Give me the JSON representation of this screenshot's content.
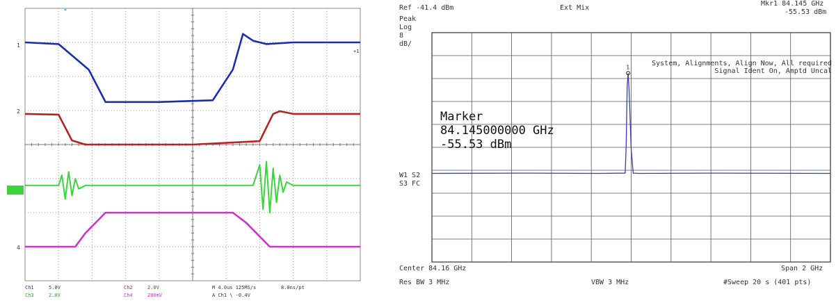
{
  "oscilloscope": {
    "channel_labels": [
      "1",
      "2",
      "4"
    ],
    "channel_colors": {
      "ch1": "#1a2ea8",
      "ch2": "#b52424",
      "ch3": "#3bd43b",
      "ch4": "#cc33cc"
    },
    "footer": {
      "ch1": "Ch1",
      "ch1_val": "5.0V",
      "ch3": "Ch3",
      "ch3_val": "2.0V",
      "ch2": "Ch2",
      "ch2_val": "2.0V",
      "ch4": "Ch4",
      "ch4_val": "200mV",
      "time": "M 4.0us 125MS/s",
      "trig": "8.0ns/pt",
      "aux": "A Ch1 \\ -0.4V"
    }
  },
  "spectrum": {
    "ref": "Ref -41.4 dBm",
    "ext_mix": "Ext Mix",
    "mkr_label": "Mkr1  84.145 GHz",
    "mkr_level": "-55.53 dBm",
    "peak": "Peak",
    "log": "Log",
    "scale_num": "8",
    "scale_unit": "dB/",
    "sys_line1": "System, Alignments, Align Now, All required",
    "sys_line2": "Signal Ident On, Amptd Uncal",
    "w1": "W1  S2",
    "s3": "S3  FC",
    "center": "Center 84.16 GHz",
    "span": "Span 2 GHz",
    "res_bw": "Res BW 3 MHz",
    "vbw": "VBW 3 MHz",
    "sweep": "#Sweep 20 s (401 pts)",
    "marker_title": "Marker",
    "marker_freq": "84.145000000 GHz",
    "marker_amp": "-55.53 dBm",
    "marker_num": "1"
  },
  "chart_data": [
    {
      "type": "line",
      "title": "",
      "xlabel": "",
      "ylabel": "",
      "x_divisions": 10,
      "y_divisions": 8,
      "grid": true,
      "series": [
        {
          "channel": "1",
          "x": [
            0,
            1.0,
            1.9,
            2.4,
            4.0,
            5.6,
            6.2,
            6.5,
            6.8,
            7.2,
            8.0,
            10
          ],
          "y": [
            3.0,
            2.95,
            2.2,
            1.25,
            1.25,
            1.3,
            2.2,
            3.25,
            3.05,
            2.95,
            3.0,
            3.0
          ]
        },
        {
          "channel": "2",
          "x": [
            0,
            1.0,
            1.2,
            1.4,
            1.8,
            5.0,
            7.0,
            7.4,
            7.6,
            8.0,
            10
          ],
          "y": [
            0.9,
            0.88,
            0.5,
            0.12,
            0.0,
            0.0,
            0.1,
            0.9,
            0.98,
            0.9,
            0.9
          ]
        },
        {
          "channel": "3",
          "x": [
            0,
            1.0,
            1.1,
            1.2,
            1.3,
            1.4,
            1.5,
            1.6,
            1.8,
            6.8,
            7.0,
            7.1,
            7.2,
            7.3,
            7.4,
            7.5,
            7.6,
            7.7,
            7.8,
            8.0,
            10
          ],
          "y": [
            -1.2,
            -1.2,
            -0.9,
            -1.6,
            -0.8,
            -1.5,
            -1.0,
            -1.3,
            -1.2,
            -1.2,
            -0.6,
            -1.9,
            -0.5,
            -2.0,
            -0.7,
            -1.7,
            -0.9,
            -1.4,
            -1.1,
            -1.2,
            -1.2
          ]
        },
        {
          "channel": "4",
          "x": [
            0,
            1.5,
            1.8,
            2.4,
            6.2,
            6.6,
            7.3,
            10
          ],
          "y": [
            -3.0,
            -3.0,
            -2.6,
            -2.0,
            -2.0,
            -2.3,
            -3.0,
            -3.0
          ]
        }
      ]
    },
    {
      "type": "line",
      "title": "",
      "xlabel": "",
      "ylabel": "",
      "xlim": [
        83.16,
        85.16
      ],
      "ylim": [
        -121.4,
        -41.4
      ],
      "x_unit": "GHz",
      "y_unit": "dBm",
      "grid": true,
      "series": [
        {
          "name": "W1",
          "x": [
            83.16,
            83.6,
            84.0,
            84.13,
            84.135,
            84.14,
            84.145,
            84.15,
            84.16,
            84.17,
            84.2,
            84.6,
            85.16
          ],
          "y": [
            -90.5,
            -90.4,
            -90.5,
            -90.4,
            -81.0,
            -60.0,
            -55.53,
            -62.0,
            -82.0,
            -90.4,
            -90.5,
            -90.4,
            -90.5
          ]
        }
      ],
      "markers": [
        {
          "label": "1",
          "x": 84.145,
          "y": -55.53
        }
      ]
    }
  ]
}
